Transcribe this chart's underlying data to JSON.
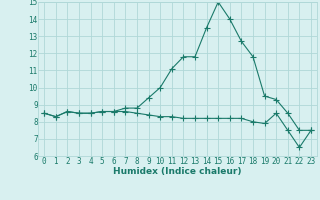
{
  "xlabel": "Humidex (Indice chaleur)",
  "x": [
    0,
    1,
    2,
    3,
    4,
    5,
    6,
    7,
    8,
    9,
    10,
    11,
    12,
    13,
    14,
    15,
    16,
    17,
    18,
    19,
    20,
    21,
    22,
    23
  ],
  "line1_y": [
    8.5,
    8.3,
    8.6,
    8.5,
    8.5,
    8.6,
    8.6,
    8.8,
    8.8,
    9.4,
    10.0,
    11.1,
    11.8,
    11.8,
    13.5,
    15.0,
    14.0,
    12.7,
    11.8,
    9.5,
    9.3,
    8.5,
    7.5,
    7.5
  ],
  "line2_y": [
    8.5,
    8.3,
    8.6,
    8.5,
    8.5,
    8.6,
    8.6,
    8.6,
    8.5,
    8.4,
    8.3,
    8.3,
    8.2,
    8.2,
    8.2,
    8.2,
    8.2,
    8.2,
    8.0,
    7.9,
    8.5,
    7.5,
    6.5,
    7.5
  ],
  "line_color": "#1a7a6a",
  "bg_color": "#d8f0f0",
  "grid_color": "#b0d8d8",
  "ylim": [
    6,
    15
  ],
  "xlim_min": -0.5,
  "xlim_max": 23.5,
  "yticks": [
    6,
    7,
    8,
    9,
    10,
    11,
    12,
    13,
    14,
    15
  ],
  "xticks": [
    0,
    1,
    2,
    3,
    4,
    5,
    6,
    7,
    8,
    9,
    10,
    11,
    12,
    13,
    14,
    15,
    16,
    17,
    18,
    19,
    20,
    21,
    22,
    23
  ],
  "tick_fontsize": 5.5,
  "xlabel_fontsize": 6.5,
  "marker_size": 2.0,
  "linewidth": 0.8
}
